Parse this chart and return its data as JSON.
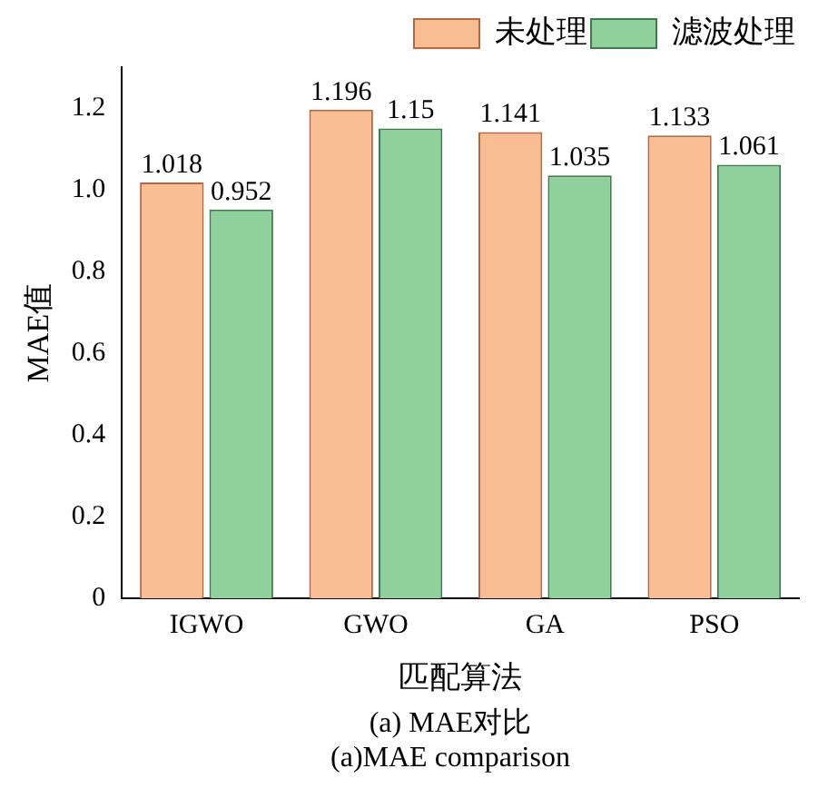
{
  "chart_data": {
    "type": "bar",
    "title": "(a) MAE对比",
    "subtitle": "(a)MAE comparison",
    "xlabel": "匹配算法",
    "ylabel": "MAE值",
    "categories": [
      "IGWO",
      "GWO",
      "GA",
      "PSO"
    ],
    "series": [
      {
        "name": "未处理",
        "color": "#f8bd92",
        "values": [
          1.018,
          1.196,
          1.141,
          1.133
        ]
      },
      {
        "name": "滤波处理",
        "color": "#8fd09c",
        "values": [
          0.952,
          1.15,
          1.035,
          1.061
        ]
      }
    ],
    "ylim": [
      0,
      1.3
    ],
    "yticks": [
      0,
      0.2,
      0.4,
      0.6,
      0.8,
      {
        "value": 1,
        "label": "1.0"
      },
      1.2
    ],
    "data_labels": true,
    "legend": "top right",
    "grid": false
  }
}
